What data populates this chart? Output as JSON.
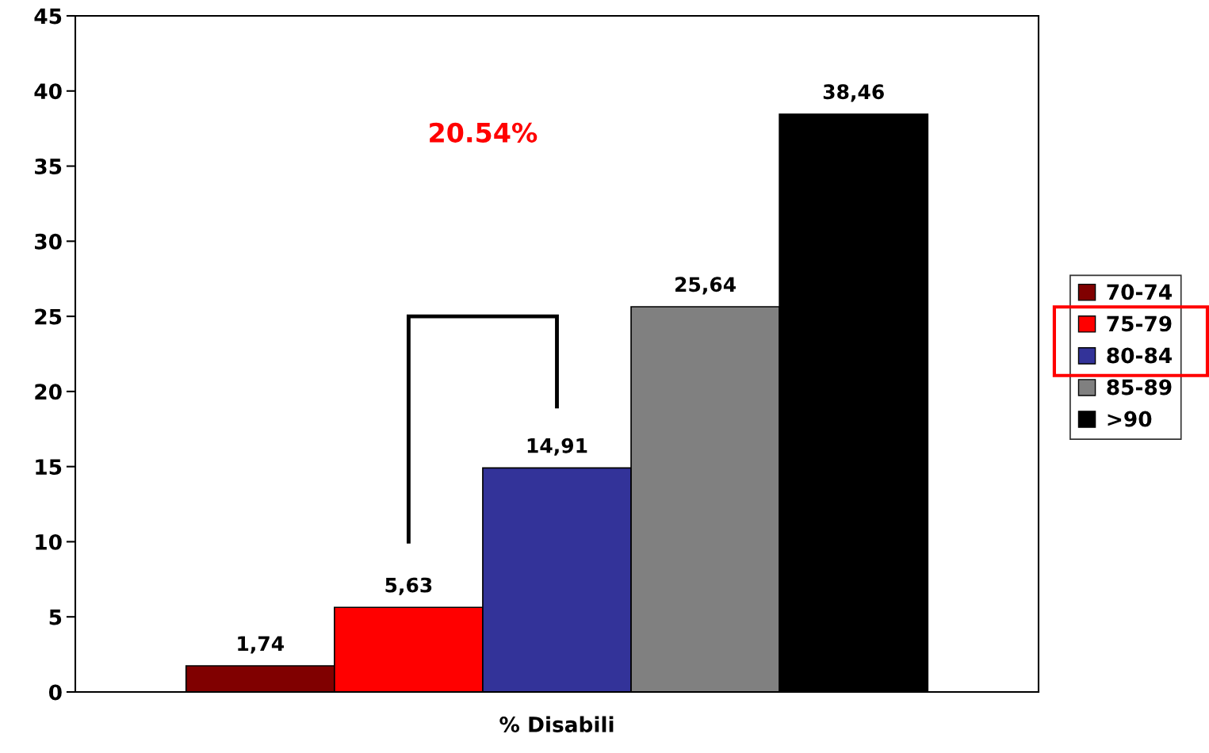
{
  "chart_data": {
    "type": "bar",
    "categories": [
      "% Disabili"
    ],
    "series": [
      {
        "name": "70-74",
        "color": "#800000",
        "values": [
          1.74
        ],
        "value_labels": [
          "1,74"
        ]
      },
      {
        "name": "75-79",
        "color": "#ff0000",
        "values": [
          5.63
        ],
        "value_labels": [
          "5,63"
        ]
      },
      {
        "name": "80-84",
        "color": "#333399",
        "values": [
          14.91
        ],
        "value_labels": [
          "14,91"
        ]
      },
      {
        "name": "85-89",
        "color": "#808080",
        "values": [
          25.64
        ],
        "value_labels": [
          "25,64"
        ]
      },
      {
        "name": ">90",
        "color": "#000000",
        "values": [
          38.46
        ],
        "value_labels": [
          "38,46"
        ]
      }
    ],
    "ylim": [
      0,
      45
    ],
    "yticks": [
      0,
      5,
      10,
      15,
      20,
      25,
      30,
      35,
      40,
      45
    ],
    "grid": false,
    "legend": "right",
    "annotations": [
      "20.54%"
    ]
  }
}
